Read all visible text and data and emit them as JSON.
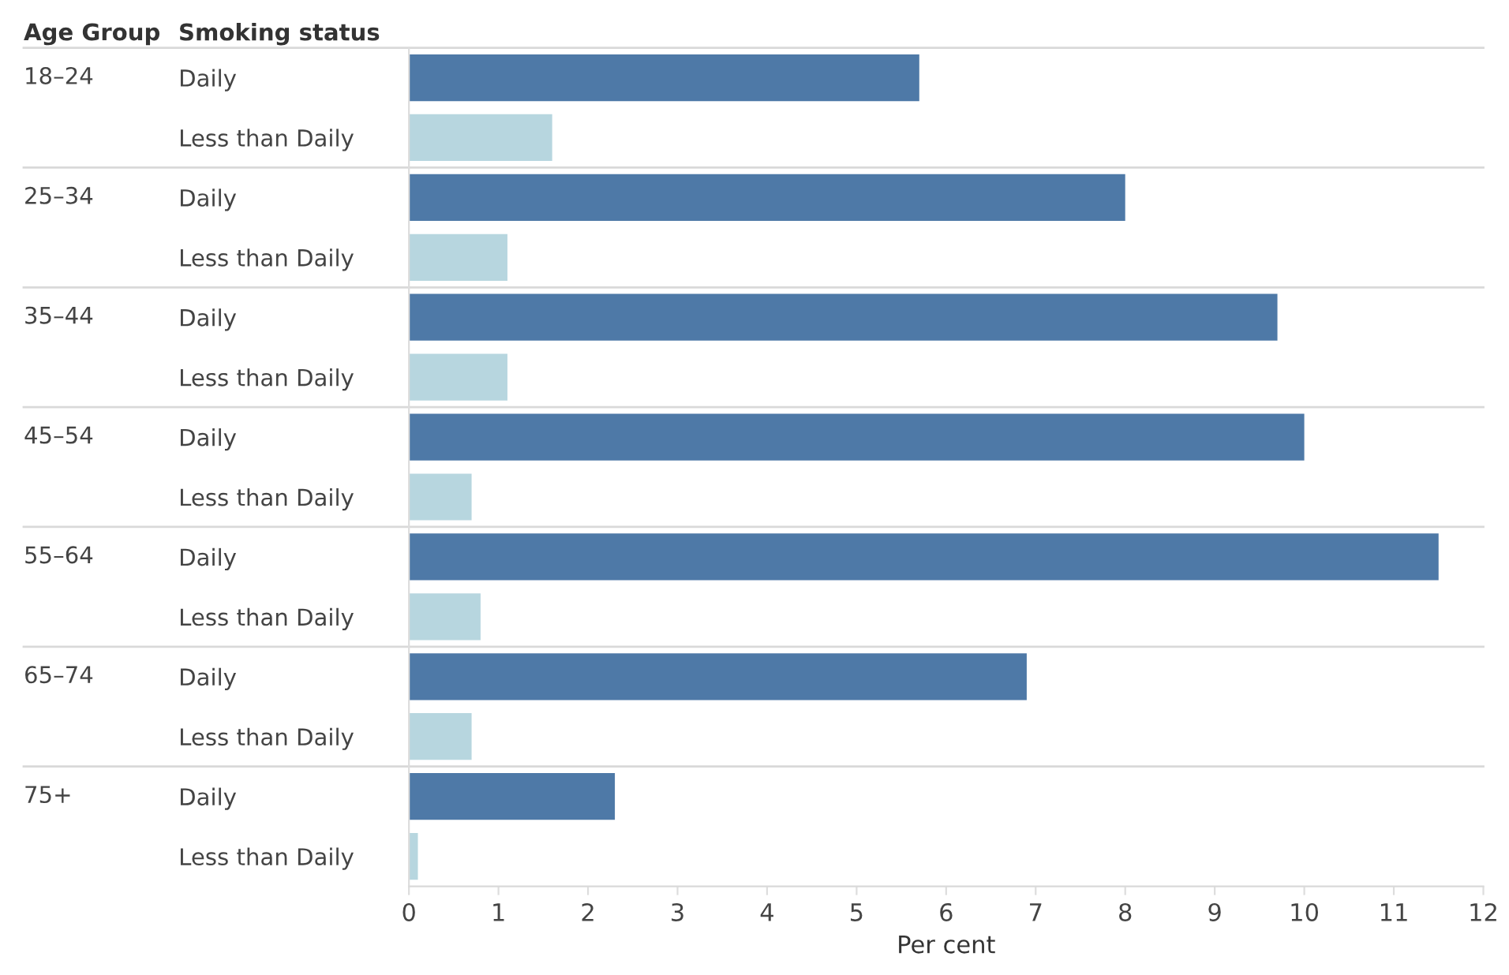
{
  "chart_data": {
    "type": "bar",
    "orientation": "horizontal",
    "xlabel": "Per cent",
    "annotations": [
      "Age Group",
      "Smoking status",
      "18–24",
      "25–34",
      "35–44",
      "45–54",
      "55–64",
      "65–74",
      "75+"
    ],
    "categories": [
      "Daily",
      "Less than Daily",
      "Daily",
      "Less than Daily",
      "Daily",
      "Less than Daily",
      "Daily",
      "Less than Daily",
      "Daily",
      "Less than Daily",
      "Daily",
      "Less than Daily",
      "Daily",
      "Less than Daily"
    ],
    "values": [
      5.7,
      1.6,
      8.0,
      1.1,
      9.7,
      1.1,
      10.0,
      0.7,
      11.5,
      0.8,
      6.9,
      0.7,
      2.3,
      0.1
    ],
    "colors": [
      "#4e79a7",
      "#b7d6df",
      "#4e79a7",
      "#b7d6df",
      "#4e79a7",
      "#b7d6df",
      "#4e79a7",
      "#b7d6df",
      "#4e79a7",
      "#b7d6df",
      "#4e79a7",
      "#b7d6df",
      "#4e79a7",
      "#b7d6df"
    ],
    "xlim": [
      0,
      12
    ],
    "xticks": [
      0,
      1,
      2,
      3,
      4,
      5,
      6,
      7,
      8,
      9,
      10,
      11,
      12
    ],
    "grid": false,
    "legend": false
  }
}
